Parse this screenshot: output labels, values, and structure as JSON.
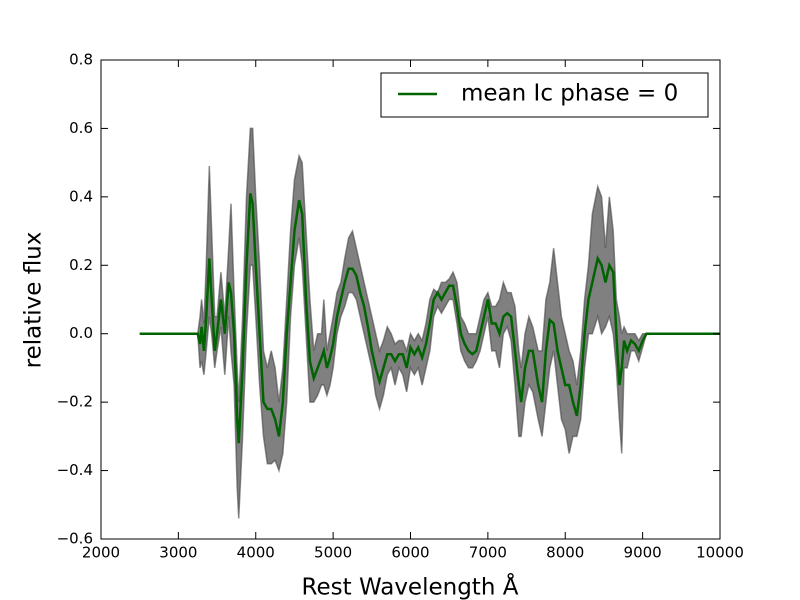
{
  "chart_data": {
    "type": "line",
    "xlabel": "Rest Wavelength Å",
    "ylabel": "relative flux",
    "xlim": [
      2000,
      10000
    ],
    "ylim": [
      -0.6,
      0.8
    ],
    "xticks": [
      2000,
      3000,
      4000,
      5000,
      6000,
      7000,
      8000,
      9000,
      10000
    ],
    "yticks": [
      {
        "value": -0.6,
        "label": "−0.6"
      },
      {
        "value": -0.4,
        "label": "−0.4"
      },
      {
        "value": -0.2,
        "label": "−0.2"
      },
      {
        "value": 0,
        "label": "0.0"
      },
      0.2,
      0.4,
      0.6,
      0.8
    ],
    "legend": "upper right",
    "x": [
      2500,
      3250,
      3280,
      3300,
      3330,
      3360,
      3400,
      3430,
      3470,
      3500,
      3550,
      3600,
      3650,
      3680,
      3720,
      3760,
      3780,
      3830,
      3880,
      3930,
      3960,
      4000,
      4050,
      4100,
      4150,
      4200,
      4250,
      4300,
      4350,
      4400,
      4450,
      4500,
      4560,
      4600,
      4650,
      4700,
      4750,
      4800,
      4850,
      4880,
      4920,
      4960,
      5000,
      5050,
      5100,
      5150,
      5200,
      5250,
      5300,
      5350,
      5400,
      5450,
      5500,
      5550,
      5600,
      5650,
      5700,
      5750,
      5800,
      5850,
      5900,
      5950,
      6000,
      6050,
      6100,
      6150,
      6200,
      6250,
      6300,
      6350,
      6400,
      6450,
      6500,
      6550,
      6600,
      6650,
      6700,
      6750,
      6800,
      6850,
      6900,
      6950,
      7000,
      7050,
      7100,
      7150,
      7200,
      7250,
      7300,
      7350,
      7400,
      7430,
      7480,
      7530,
      7580,
      7650,
      7700,
      7750,
      7800,
      7850,
      7900,
      7950,
      8000,
      8050,
      8100,
      8150,
      8200,
      8250,
      8300,
      8350,
      8420,
      8470,
      8520,
      8570,
      8620,
      8660,
      8700,
      8730,
      8760,
      8800,
      8850,
      8900,
      8950,
      9000,
      9050,
      10000
    ],
    "series": [
      {
        "name": "mean Ic phase = 0",
        "color": "#006400",
        "values": [
          0,
          0,
          -0.03,
          0.02,
          -0.05,
          0.05,
          0.22,
          0.1,
          -0.05,
          0,
          0.1,
          0,
          0.15,
          0.12,
          0,
          -0.25,
          -0.32,
          -0.1,
          0.2,
          0.41,
          0.38,
          0.2,
          0,
          -0.2,
          -0.22,
          -0.22,
          -0.25,
          -0.3,
          -0.2,
          0,
          0.15,
          0.3,
          0.39,
          0.35,
          0.1,
          -0.08,
          -0.13,
          -0.1,
          -0.07,
          -0.05,
          -0.1,
          -0.07,
          -0.03,
          0.05,
          0.1,
          0.15,
          0.19,
          0.19,
          0.17,
          0.12,
          0.08,
          0.02,
          -0.05,
          -0.1,
          -0.14,
          -0.1,
          -0.06,
          -0.06,
          -0.08,
          -0.06,
          -0.06,
          -0.1,
          -0.04,
          -0.06,
          -0.04,
          -0.07,
          -0.03,
          0.03,
          0.1,
          0.12,
          0.1,
          0.12,
          0.14,
          0.14,
          0.08,
          0,
          -0.03,
          -0.05,
          -0.06,
          -0.05,
          0,
          0.05,
          0.1,
          0.03,
          0.03,
          0,
          0.05,
          0.06,
          0.05,
          -0.05,
          -0.15,
          -0.2,
          -0.1,
          -0.05,
          -0.05,
          -0.15,
          -0.2,
          -0.05,
          0.04,
          0.03,
          -0.05,
          -0.1,
          -0.15,
          -0.15,
          -0.2,
          -0.24,
          -0.15,
          0,
          0.1,
          0.15,
          0.22,
          0.2,
          0.15,
          0.2,
          0.18,
          0,
          -0.15,
          -0.1,
          -0.02,
          -0.05,
          -0.02,
          -0.03,
          -0.05,
          -0.02,
          0,
          0
        ]
      }
    ],
    "band": {
      "color": "#808080",
      "lower": [
        0,
        0,
        -0.1,
        -0.08,
        -0.12,
        -0.05,
        0.05,
        0,
        -0.1,
        -0.05,
        0.02,
        -0.12,
        0.05,
        -0.05,
        -0.15,
        -0.45,
        -0.54,
        -0.3,
        0,
        0.2,
        0.2,
        0.05,
        -0.15,
        -0.3,
        -0.38,
        -0.38,
        -0.37,
        -0.4,
        -0.35,
        -0.2,
        0.05,
        0.2,
        0.28,
        0.2,
        0,
        -0.2,
        -0.2,
        -0.18,
        -0.15,
        -0.15,
        -0.18,
        -0.15,
        -0.1,
        0,
        0.05,
        0.08,
        0.12,
        0.12,
        0.1,
        0.05,
        0,
        -0.05,
        -0.1,
        -0.18,
        -0.22,
        -0.18,
        -0.12,
        -0.1,
        -0.15,
        -0.1,
        -0.12,
        -0.17,
        -0.1,
        -0.12,
        -0.1,
        -0.15,
        -0.1,
        -0.05,
        0.05,
        0.08,
        0.06,
        0.08,
        0.1,
        0.1,
        0.03,
        -0.05,
        -0.08,
        -0.1,
        -0.1,
        -0.08,
        -0.05,
        0,
        0.05,
        -0.05,
        -0.05,
        -0.1,
        0,
        0.02,
        -0.02,
        -0.15,
        -0.3,
        -0.3,
        -0.2,
        -0.15,
        -0.17,
        -0.25,
        -0.3,
        -0.2,
        -0.1,
        -0.05,
        -0.15,
        -0.25,
        -0.28,
        -0.35,
        -0.3,
        -0.3,
        -0.25,
        -0.1,
        0,
        0,
        0.05,
        0,
        0.02,
        0.05,
        0,
        -0.1,
        -0.25,
        -0.35,
        -0.1,
        -0.1,
        -0.05,
        -0.05,
        -0.08,
        -0.04,
        0,
        0
      ],
      "upper": [
        0,
        0,
        0.05,
        0.1,
        0.03,
        0.2,
        0.49,
        0.3,
        0.05,
        0.05,
        0.18,
        0.05,
        0.25,
        0.38,
        0.12,
        -0.1,
        -0.2,
        0.05,
        0.4,
        0.6,
        0.6,
        0.4,
        0.2,
        -0.05,
        -0.1,
        -0.05,
        -0.1,
        -0.2,
        -0.1,
        0.1,
        0.3,
        0.45,
        0.52,
        0.5,
        0.3,
        0.1,
        -0.05,
        0,
        0,
        0.1,
        -0.05,
        0,
        0.05,
        0.12,
        0.15,
        0.22,
        0.28,
        0.3,
        0.25,
        0.2,
        0.15,
        0.1,
        0.05,
        0,
        -0.05,
        -0.02,
        0.02,
        0,
        -0.03,
        -0.02,
        -0.02,
        -0.05,
        0,
        -0.02,
        0,
        -0.02,
        0.03,
        0.1,
        0.13,
        0.12,
        0.15,
        0.15,
        0.16,
        0.18,
        0.15,
        0.05,
        0.03,
        0,
        0,
        0,
        0.05,
        0.1,
        0.12,
        0.08,
        0.08,
        0.1,
        0.15,
        0.12,
        0.12,
        0.08,
        -0.05,
        -0.1,
        0,
        0.05,
        0.02,
        -0.05,
        -0.05,
        0.1,
        0.15,
        0.25,
        0.15,
        0.05,
        0,
        -0.05,
        -0.08,
        -0.15,
        -0.05,
        0.1,
        0.2,
        0.35,
        0.43,
        0.4,
        0.25,
        0.4,
        0.3,
        0.1,
        0.05,
        0,
        0.02,
        0,
        0,
        0,
        -0.02,
        0,
        0,
        0
      ]
    }
  }
}
